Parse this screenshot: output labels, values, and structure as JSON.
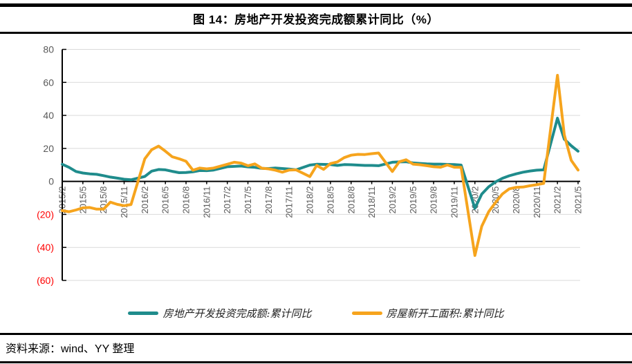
{
  "header": {
    "title": "图 14：房地产开发投资完成额累计同比（%）"
  },
  "footer": {
    "source": "资料来源：wind、YY 整理"
  },
  "colors": {
    "investment_line": "#1F8C8C",
    "new_starts_line": "#F6A41D",
    "gridline": "#D9D9D9",
    "axis": "#000000",
    "tick_label": "#595959",
    "negative_tick_label": "#FF0000"
  },
  "chart_data": {
    "type": "line",
    "title": "图 14：房地产开发投资完成额累计同比（%）",
    "xlabel": "",
    "ylabel": "",
    "ylim": [
      -60,
      80
    ],
    "grid": true,
    "legend_position": "bottom",
    "yticks": [
      {
        "label": "80",
        "value": 80
      },
      {
        "label": "60",
        "value": 60
      },
      {
        "label": "40",
        "value": 40
      },
      {
        "label": "20",
        "value": 20
      },
      {
        "label": "0",
        "value": 0
      },
      {
        "label": "(20)",
        "value": -20
      },
      {
        "label": "(40)",
        "value": -40
      },
      {
        "label": "(60)",
        "value": -60
      }
    ],
    "x_start": "2015/2",
    "x_end": "2021/5",
    "xtick_labels": [
      "2015/2",
      "2015/5",
      "2015/8",
      "2015/11",
      "2016/2",
      "2016/5",
      "2016/8",
      "2016/11",
      "2017/2",
      "2017/5",
      "2017/8",
      "2017/11",
      "2018/2",
      "2018/5",
      "2018/8",
      "2018/11",
      "2019/2",
      "2019/5",
      "2019/8",
      "2019/11",
      "2020/2",
      "2020/5",
      "2020/8",
      "2020/11",
      "2021/2",
      "2021/5"
    ],
    "x": [
      "2015/2",
      "2015/3",
      "2015/4",
      "2015/5",
      "2015/6",
      "2015/7",
      "2015/8",
      "2015/9",
      "2015/10",
      "2015/11",
      "2015/12",
      "2016/2",
      "2016/3",
      "2016/4",
      "2016/5",
      "2016/6",
      "2016/7",
      "2016/8",
      "2016/9",
      "2016/10",
      "2016/11",
      "2016/12",
      "2017/2",
      "2017/3",
      "2017/4",
      "2017/5",
      "2017/6",
      "2017/7",
      "2017/8",
      "2017/9",
      "2017/10",
      "2017/11",
      "2017/12",
      "2018/2",
      "2018/3",
      "2018/4",
      "2018/5",
      "2018/6",
      "2018/7",
      "2018/8",
      "2018/9",
      "2018/10",
      "2018/11",
      "2018/12",
      "2019/2",
      "2019/3",
      "2019/4",
      "2019/5",
      "2019/6",
      "2019/7",
      "2019/8",
      "2019/9",
      "2019/10",
      "2019/11",
      "2019/12",
      "2020/2",
      "2020/3",
      "2020/4",
      "2020/5",
      "2020/6",
      "2020/7",
      "2020/8",
      "2020/9",
      "2020/10",
      "2020/11",
      "2020/12",
      "2021/2",
      "2021/3",
      "2021/4",
      "2021/5"
    ],
    "series": [
      {
        "id": "investment",
        "name": "房地产开发投资完成额:累计同比",
        "color": "#1F8C8C",
        "values": [
          10.4,
          8.5,
          6.0,
          5.1,
          4.6,
          4.3,
          3.5,
          2.6,
          2.0,
          1.3,
          1.0,
          3.0,
          6.2,
          7.2,
          7.0,
          6.1,
          5.3,
          5.4,
          5.8,
          6.6,
          6.5,
          6.9,
          8.9,
          9.1,
          9.3,
          8.8,
          8.5,
          7.9,
          7.8,
          8.1,
          7.8,
          7.5,
          7.0,
          9.9,
          10.4,
          10.3,
          10.2,
          9.7,
          10.2,
          10.1,
          9.9,
          9.7,
          9.7,
          9.5,
          11.6,
          11.8,
          11.9,
          11.2,
          10.9,
          10.6,
          10.5,
          10.5,
          10.3,
          10.2,
          9.9,
          -16.3,
          -7.7,
          -3.3,
          -0.3,
          1.9,
          3.4,
          4.6,
          5.6,
          6.3,
          6.8,
          7.0,
          38.3,
          25.6,
          21.6,
          18.3
        ]
      },
      {
        "id": "new-starts",
        "name": "房屋新开工面积:累计同比",
        "color": "#F6A41D",
        "values": [
          -17.7,
          -18.4,
          -17.3,
          -16.0,
          -15.8,
          -16.8,
          -16.8,
          -12.6,
          -13.9,
          -14.7,
          -14.0,
          13.7,
          19.2,
          21.4,
          18.3,
          14.9,
          13.7,
          12.2,
          6.8,
          8.1,
          7.6,
          8.1,
          10.4,
          11.6,
          11.1,
          9.5,
          10.6,
          8.0,
          7.6,
          6.8,
          5.6,
          6.9,
          7.0,
          2.9,
          9.7,
          7.3,
          10.8,
          11.8,
          14.4,
          15.9,
          16.4,
          16.3,
          16.8,
          17.2,
          6.0,
          11.9,
          13.1,
          10.5,
          10.1,
          9.5,
          8.9,
          8.6,
          10.0,
          8.6,
          8.5,
          -44.9,
          -27.2,
          -18.4,
          -12.8,
          -7.6,
          -4.5,
          -3.6,
          -3.4,
          -2.6,
          -2.0,
          -1.2,
          64.3,
          28.2,
          12.8,
          6.9
        ]
      }
    ]
  }
}
